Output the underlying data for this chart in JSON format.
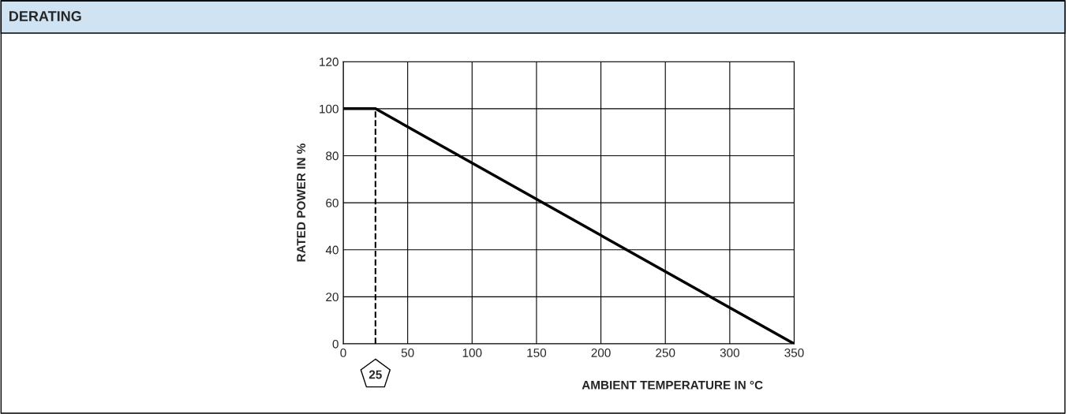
{
  "chart_data": {
    "type": "line",
    "title": "DERATING",
    "xlabel": "AMBIENT TEMPERATURE IN °C",
    "ylabel": "RATED POWER IN %",
    "series": [
      {
        "x": [
          0,
          25,
          350
        ],
        "values": [
          100,
          100,
          0
        ],
        "color": "#000000"
      }
    ],
    "xlim": [
      0,
      350
    ],
    "xticks": [
      0,
      50,
      100,
      150,
      200,
      250,
      300,
      350
    ],
    "ylim": [
      0,
      120
    ],
    "yticks": [
      0,
      20,
      40,
      60,
      80,
      100,
      120
    ],
    "grid": true,
    "marker": "none",
    "line_style": "solid",
    "ref_lines": [
      {
        "axis": "x",
        "value": 25,
        "label": "25",
        "line_style": "dashed",
        "color": "#000000"
      }
    ]
  }
}
